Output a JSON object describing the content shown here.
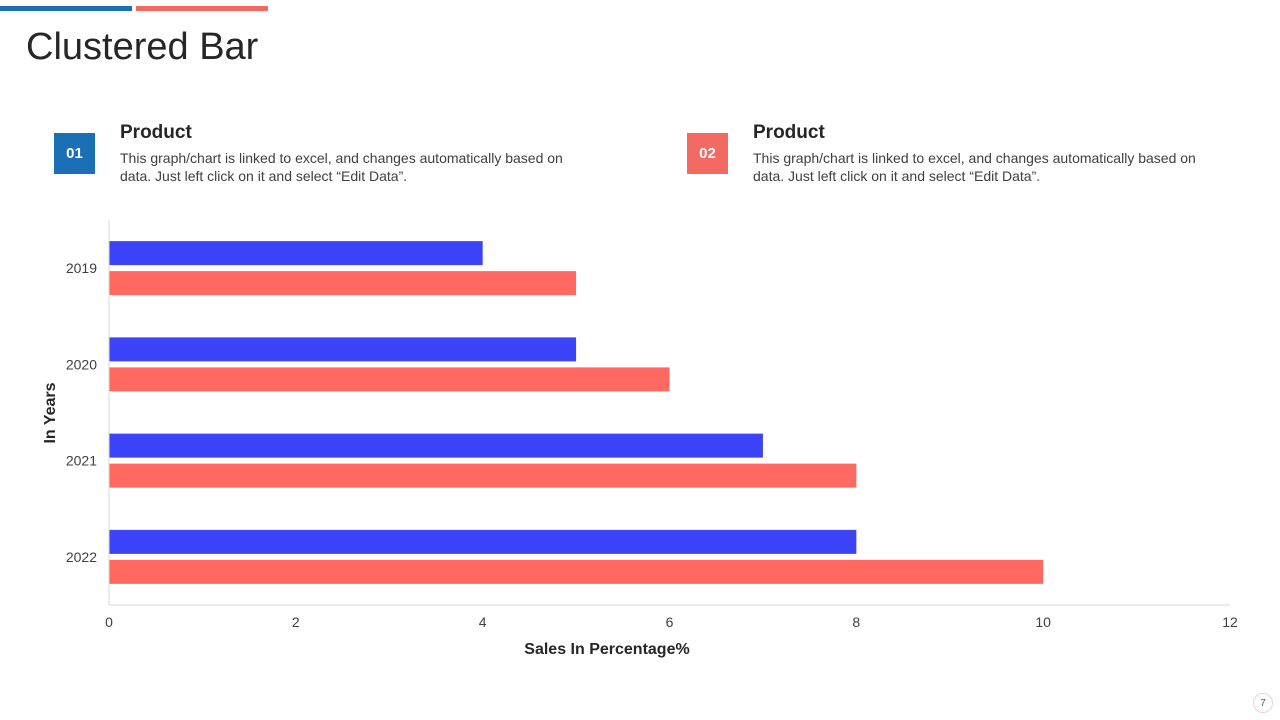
{
  "title": "Clustered Bar",
  "products": [
    {
      "badge": "01",
      "title": "Product",
      "description": "This graph/chart is linked to excel, and changes automatically based on data. Just left click on it and select “Edit Data”."
    },
    {
      "badge": "02",
      "title": "Product",
      "description": "This graph/chart is linked to excel, and changes automatically based on data. Just left click on it and select “Edit Data”."
    }
  ],
  "colors": {
    "accent_blue": "#1A6FB5",
    "accent_coral": "#F26A62"
  },
  "page_number": "7",
  "chart_data": {
    "type": "bar",
    "orientation": "horizontal",
    "categories": [
      "2019",
      "2020",
      "2021",
      "2022"
    ],
    "series": [
      {
        "values": [
          4,
          5,
          7,
          8
        ],
        "color": "#3B44F6"
      },
      {
        "values": [
          5,
          6,
          8,
          10
        ],
        "color": "#FF6961"
      }
    ],
    "xlabel": "Sales In Percentage%",
    "ylabel": "In Years",
    "xlim": [
      0,
      12
    ],
    "xticks": [
      0,
      2,
      4,
      6,
      8,
      10,
      12
    ],
    "grid": false,
    "legend": "none"
  }
}
